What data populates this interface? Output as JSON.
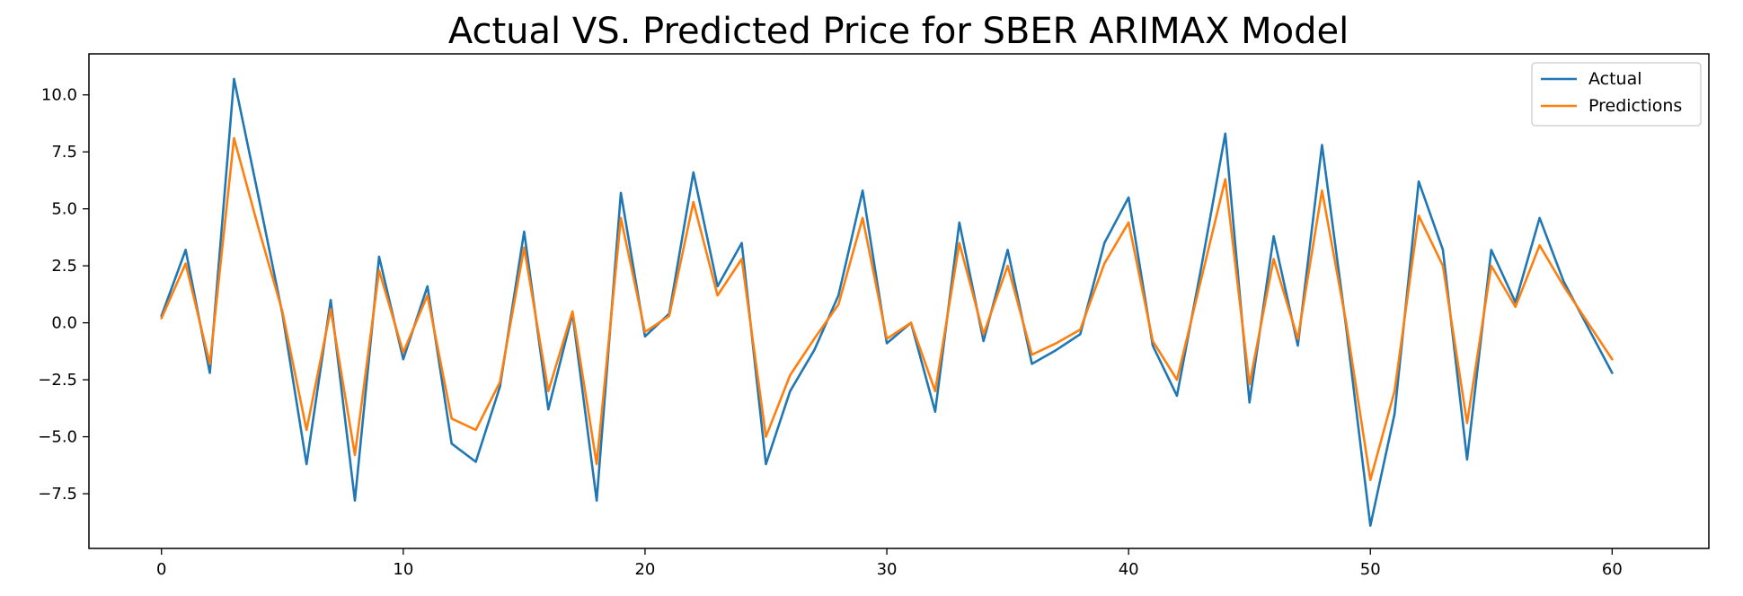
{
  "chart_data": {
    "type": "line",
    "title": "Actual  VS. Predicted Price for SBER ARIMAX Model",
    "xlabel": "",
    "ylabel": "",
    "xlim": [
      -3,
      64
    ],
    "ylim": [
      -9.9,
      11.8
    ],
    "x_ticks": [
      0,
      10,
      20,
      30,
      40,
      50,
      60
    ],
    "x_tick_labels": [
      "0",
      "10",
      "20",
      "30",
      "40",
      "50",
      "60"
    ],
    "y_ticks": [
      10.0,
      7.5,
      5.0,
      2.5,
      0.0,
      -2.5,
      -5.0,
      -7.5
    ],
    "y_tick_labels": [
      "10.0",
      "7.5",
      "5.0",
      "2.5",
      "0.0",
      "−2.5",
      "−5.0",
      "−7.5"
    ],
    "grid": false,
    "legend_position": "top-right",
    "x": [
      0,
      1,
      2,
      3,
      4,
      5,
      6,
      7,
      8,
      9,
      10,
      11,
      12,
      13,
      14,
      15,
      16,
      17,
      18,
      19,
      20,
      21,
      22,
      23,
      24,
      25,
      26,
      27,
      28,
      29,
      30,
      31,
      32,
      33,
      34,
      35,
      36,
      37,
      38,
      39,
      40,
      41,
      42,
      43,
      44,
      45,
      46,
      47,
      48,
      49,
      50,
      51,
      52,
      53,
      54,
      55,
      56,
      57,
      58,
      59,
      60
    ],
    "series": [
      {
        "name": "Actual",
        "color": "#1f77b4",
        "values": [
          0.3,
          3.2,
          -2.2,
          10.7,
          5.6,
          0.4,
          -6.2,
          1.0,
          -7.8,
          2.9,
          -1.6,
          1.6,
          -5.3,
          -6.1,
          -2.8,
          4.0,
          -3.8,
          0.4,
          -7.8,
          5.7,
          -0.6,
          0.4,
          6.6,
          1.6,
          3.5,
          -6.2,
          -3.0,
          -1.2,
          1.2,
          5.8,
          -0.9,
          0.0,
          -3.9,
          4.4,
          -0.8,
          3.2,
          -1.8,
          -1.2,
          -0.5,
          3.5,
          5.5,
          -1.0,
          -3.2,
          2.4,
          8.3,
          -3.5,
          3.8,
          -1.0,
          7.8,
          -0.2,
          -8.9,
          -4.0,
          6.2,
          3.2,
          -6.0,
          3.2,
          0.9,
          4.6,
          1.8,
          -0.2,
          -2.2
        ]
      },
      {
        "name": "Predictions",
        "color": "#ff7f0e",
        "values": [
          0.2,
          2.6,
          -1.8,
          8.1,
          4.2,
          0.5,
          -4.7,
          0.6,
          -5.8,
          2.3,
          -1.3,
          1.2,
          -4.2,
          -4.7,
          -2.6,
          3.3,
          -3.0,
          0.5,
          -6.2,
          4.6,
          -0.4,
          0.3,
          5.3,
          1.2,
          2.8,
          -5.0,
          -2.3,
          -0.7,
          0.8,
          4.6,
          -0.7,
          0.0,
          -3.0,
          3.5,
          -0.5,
          2.5,
          -1.4,
          -0.9,
          -0.3,
          2.6,
          4.4,
          -0.8,
          -2.5,
          1.9,
          6.3,
          -2.7,
          2.8,
          -0.7,
          5.8,
          0.0,
          -6.9,
          -3.0,
          4.7,
          2.5,
          -4.4,
          2.5,
          0.7,
          3.4,
          1.6,
          0.0,
          -1.6
        ]
      }
    ]
  }
}
